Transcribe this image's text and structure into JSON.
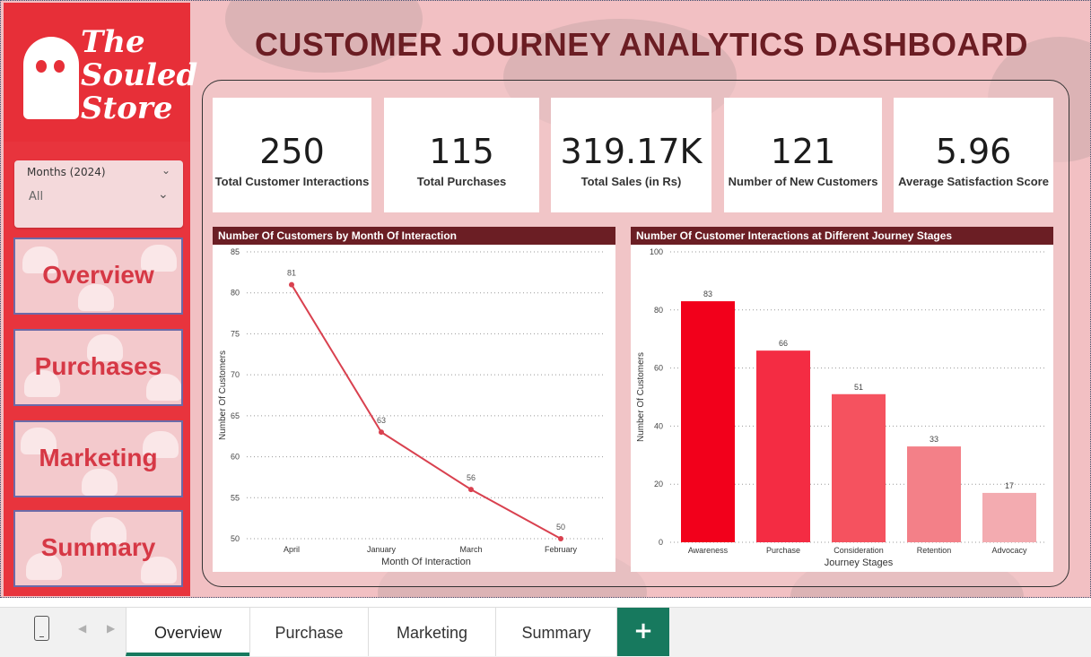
{
  "brand": {
    "logo_text": "The Souled Store",
    "primary_color": "#e8343d",
    "dark_color": "#6b1d23",
    "accent_color": "#17795e"
  },
  "dashboard": {
    "title": "CUSTOMER JOURNEY ANALYTICS DASHBOARD"
  },
  "slicer": {
    "title": "Months (2024)",
    "value": "All"
  },
  "nav": [
    {
      "label": "Overview"
    },
    {
      "label": "Purchases"
    },
    {
      "label": "Marketing"
    },
    {
      "label": "Summary"
    }
  ],
  "kpis": [
    {
      "value": "250",
      "label": "Total Customer Interactions"
    },
    {
      "value": "115",
      "label": "Total Purchases"
    },
    {
      "value": "319.17K",
      "label": "Total Sales (in Rs)"
    },
    {
      "value": "121",
      "label": "Number of New Customers"
    },
    {
      "value": "5.96",
      "label": "Average Satisfaction Score"
    }
  ],
  "chart_data": [
    {
      "type": "line",
      "title": "Number Of Customers by Month Of Interaction",
      "categories": [
        "April",
        "January",
        "March",
        "February"
      ],
      "values": [
        81,
        63,
        56,
        50
      ],
      "xlabel": "Month Of Interaction",
      "ylabel": "Number Of Customers",
      "ylim": [
        50,
        85
      ],
      "yticks": [
        50,
        55,
        60,
        65,
        70,
        75,
        80,
        85
      ],
      "grid": true,
      "color": "#d9414f"
    },
    {
      "type": "bar",
      "title": "Number Of Customer Interactions at Different Journey Stages",
      "categories": [
        "Awareness",
        "Purchase",
        "Consideration",
        "Retention",
        "Advocacy"
      ],
      "values": [
        83,
        66,
        51,
        33,
        17
      ],
      "xlabel": "Journey Stages",
      "ylabel": "Number Of Customers",
      "ylim": [
        0,
        100
      ],
      "yticks": [
        0,
        20,
        40,
        60,
        80,
        100
      ],
      "grid": true,
      "colors": [
        "#f2001b",
        "#f42c43",
        "#f5525f",
        "#f38088",
        "#f3abb0"
      ]
    }
  ],
  "tabs": [
    {
      "label": "Overview",
      "active": true
    },
    {
      "label": "Purchase",
      "active": false
    },
    {
      "label": "Marketing",
      "active": false
    },
    {
      "label": "Summary",
      "active": false
    }
  ],
  "tab_add_label": "+"
}
